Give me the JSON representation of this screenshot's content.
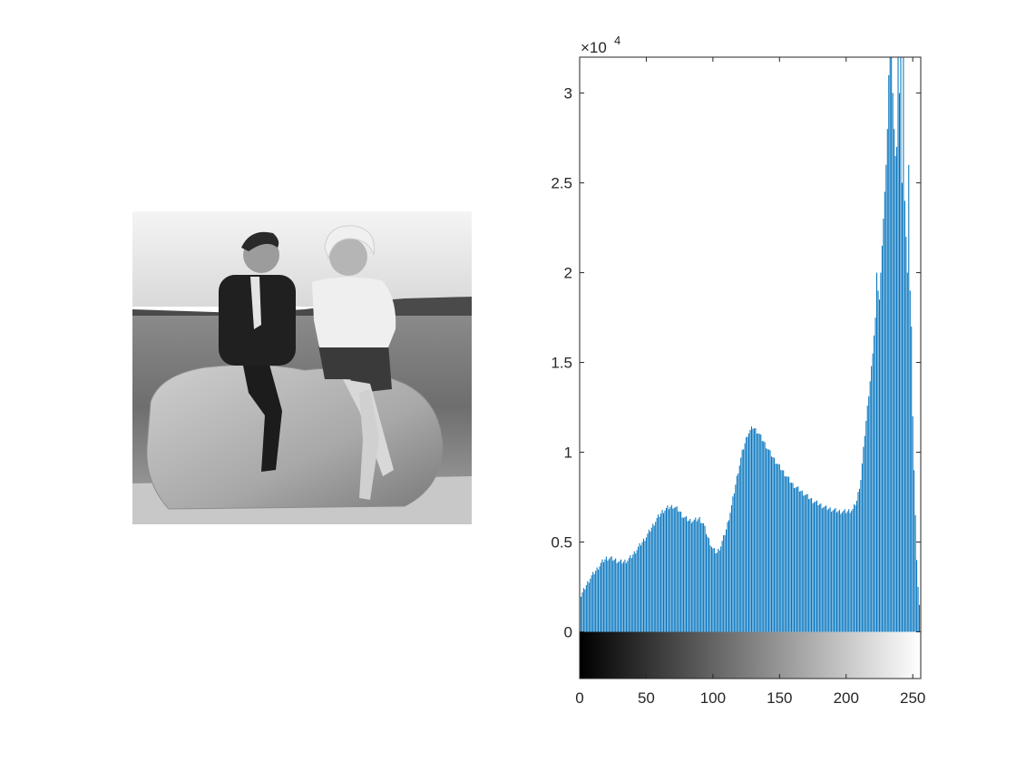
{
  "image_panel": {
    "caption": "Two men seated on a large rock by the sea (grayscale photo)",
    "content": "grayscale-photograph"
  },
  "chart_data": {
    "type": "bar",
    "title": "",
    "xlabel": "",
    "ylabel": "",
    "xlim": [
      0,
      256
    ],
    "ylim": [
      -2600,
      32000
    ],
    "y_exponent_label": "×10",
    "y_exponent_power": "4",
    "bar_color": "#0072BD",
    "xticks": [
      {
        "value": 0,
        "label": "0"
      },
      {
        "value": 50,
        "label": "50"
      },
      {
        "value": 100,
        "label": "100"
      },
      {
        "value": 150,
        "label": "150"
      },
      {
        "value": 200,
        "label": "200"
      },
      {
        "value": 250,
        "label": "250"
      }
    ],
    "yticks": [
      {
        "value": 0,
        "label": "0"
      },
      {
        "value": 5000,
        "label": "0.5"
      },
      {
        "value": 10000,
        "label": "1"
      },
      {
        "value": 15000,
        "label": "1.5"
      },
      {
        "value": 20000,
        "label": "2"
      },
      {
        "value": 25000,
        "label": "2.5"
      },
      {
        "value": 30000,
        "label": "3"
      }
    ],
    "colorbar": {
      "min_gray": 0,
      "max_gray": 255,
      "height_value": 2600
    },
    "series": [
      {
        "name": "Image histogram",
        "anchors": [
          [
            0,
            3800
          ],
          [
            1,
            2000
          ],
          [
            3,
            2300
          ],
          [
            5,
            2600
          ],
          [
            8,
            3000
          ],
          [
            11,
            3300
          ],
          [
            14,
            3600
          ],
          [
            17,
            3900
          ],
          [
            20,
            4100
          ],
          [
            23,
            4100
          ],
          [
            27,
            4000
          ],
          [
            30,
            3900
          ],
          [
            33,
            3900
          ],
          [
            36,
            4000
          ],
          [
            39,
            4200
          ],
          [
            42,
            4500
          ],
          [
            46,
            4900
          ],
          [
            50,
            5300
          ],
          [
            54,
            5800
          ],
          [
            58,
            6300
          ],
          [
            62,
            6700
          ],
          [
            66,
            6900
          ],
          [
            70,
            7000
          ],
          [
            74,
            6800
          ],
          [
            78,
            6400
          ],
          [
            82,
            6200
          ],
          [
            86,
            6200
          ],
          [
            90,
            6300
          ],
          [
            93,
            6000
          ],
          [
            96,
            5300
          ],
          [
            100,
            4600
          ],
          [
            103,
            4400
          ],
          [
            106,
            4800
          ],
          [
            110,
            5700
          ],
          [
            114,
            7000
          ],
          [
            118,
            8600
          ],
          [
            122,
            10000
          ],
          [
            126,
            11000
          ],
          [
            130,
            11400
          ],
          [
            134,
            11100
          ],
          [
            138,
            10600
          ],
          [
            142,
            10100
          ],
          [
            146,
            9600
          ],
          [
            150,
            9200
          ],
          [
            155,
            8700
          ],
          [
            160,
            8200
          ],
          [
            165,
            7900
          ],
          [
            170,
            7600
          ],
          [
            175,
            7300
          ],
          [
            180,
            7100
          ],
          [
            185,
            6900
          ],
          [
            190,
            6800
          ],
          [
            195,
            6700
          ],
          [
            200,
            6700
          ],
          [
            205,
            6800
          ],
          [
            208,
            7300
          ],
          [
            211,
            8500
          ],
          [
            214,
            11000
          ],
          [
            216,
            12500
          ],
          [
            218,
            14000
          ],
          [
            220,
            15500
          ],
          [
            222,
            17500
          ],
          [
            223,
            20000
          ],
          [
            224,
            19000
          ],
          [
            225,
            18500
          ],
          [
            226,
            20000
          ],
          [
            227,
            21500
          ],
          [
            228,
            23000
          ],
          [
            229,
            24500
          ],
          [
            230,
            26000
          ],
          [
            231,
            28000
          ],
          [
            232,
            31000
          ],
          [
            233,
            33000
          ],
          [
            234,
            35000
          ],
          [
            235,
            30000
          ],
          [
            236,
            28000
          ],
          [
            237,
            26500
          ],
          [
            238,
            27000
          ],
          [
            239,
            34000
          ],
          [
            240,
            30000
          ],
          [
            241,
            35000
          ],
          [
            242,
            25000
          ],
          [
            243,
            33000
          ],
          [
            244,
            24000
          ],
          [
            245,
            22000
          ],
          [
            246,
            20000
          ],
          [
            247,
            26000
          ],
          [
            248,
            19000
          ],
          [
            249,
            17000
          ],
          [
            250,
            12000
          ],
          [
            251,
            9000
          ],
          [
            252,
            6500
          ],
          [
            253,
            4000
          ],
          [
            254,
            2500
          ],
          [
            255,
            1500
          ]
        ]
      }
    ]
  }
}
